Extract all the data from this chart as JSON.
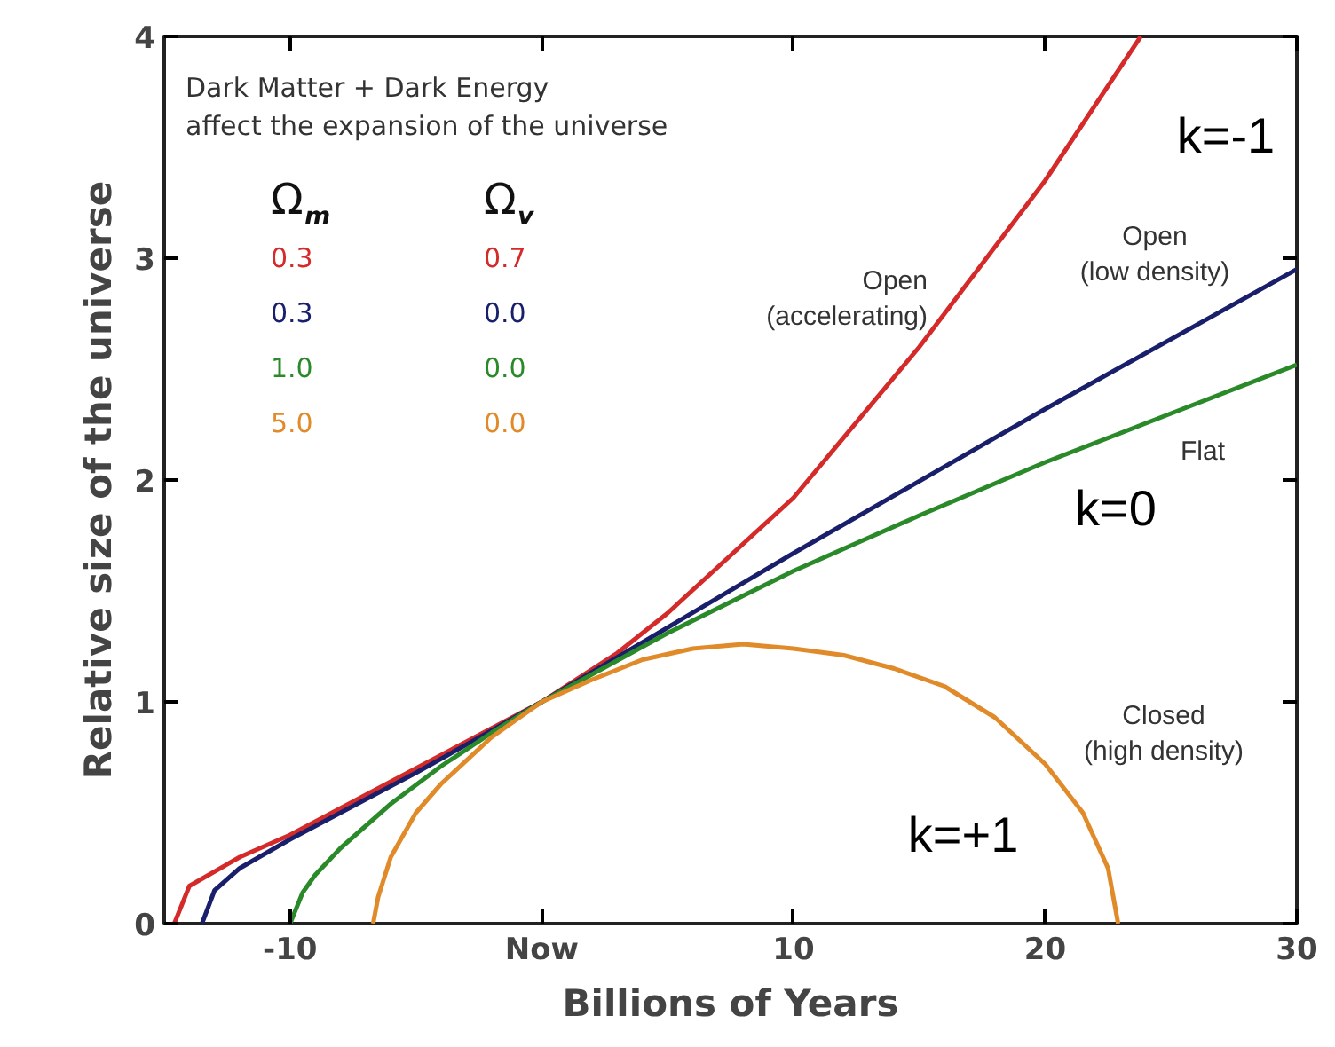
{
  "chart_data": {
    "type": "line",
    "xlabel": "Billions of Years",
    "ylabel": "Relative size of the universe",
    "xlim": [
      -15,
      30
    ],
    "ylim": [
      0,
      4
    ],
    "xticks": [
      -10,
      {
        "value": 0,
        "label": "Now"
      },
      10,
      20,
      30
    ],
    "yticks": [
      0,
      1,
      2,
      3,
      4
    ],
    "grid": false,
    "line_style": "solid",
    "marker": "none",
    "legend_title": "Ω$_{m}$ Ω$_{v}$",
    "series": [
      {
        "name": "0.3 0.7",
        "color": "#d42a2a",
        "x": [
          -14.6,
          -14,
          -12,
          -10,
          -8,
          -5,
          -2,
          0,
          3,
          5,
          10,
          15,
          20,
          23.8
        ],
        "values": [
          0,
          0.17,
          0.3,
          0.4,
          0.52,
          0.7,
          0.88,
          1,
          1.22,
          1.4,
          1.92,
          2.6,
          3.35,
          4
        ]
      },
      {
        "name": "0.3 0.0",
        "color": "#1a1f6b",
        "x": [
          -13.5,
          -13,
          -12,
          -10,
          -8,
          -5,
          -2,
          0,
          10,
          20,
          30
        ],
        "values": [
          0,
          0.15,
          0.25,
          0.38,
          0.5,
          0.68,
          0.87,
          1,
          1.67,
          2.32,
          2.95
        ]
      },
      {
        "name": "1.0 0.0",
        "color": "#2a8a2a",
        "x": [
          -10,
          -9.5,
          -9,
          -8,
          -6,
          -4,
          -2,
          0,
          5,
          10,
          15,
          20,
          25,
          30
        ],
        "values": [
          0,
          0.14,
          0.22,
          0.34,
          0.54,
          0.71,
          0.86,
          1,
          1.31,
          1.59,
          1.84,
          2.08,
          2.3,
          2.52
        ]
      },
      {
        "name": "5.0 0.0",
        "color": "#e08a2a",
        "x": [
          -6.7,
          -6.5,
          -6,
          -5,
          -4,
          -2,
          0,
          2,
          4,
          6,
          8,
          10,
          12,
          14,
          16,
          18,
          20,
          21.5,
          22.5,
          22.9
        ],
        "values": [
          0,
          0.12,
          0.3,
          0.5,
          0.63,
          0.84,
          1,
          1.1,
          1.19,
          1.24,
          1.26,
          1.24,
          1.21,
          1.15,
          1.07,
          0.93,
          0.72,
          0.5,
          0.25,
          0
        ]
      }
    ],
    "annotations": [
      "Dark Matter + Dark Energy\naffect the expansion of the universe",
      "Open\n(accelerating)",
      "Open\n(low density)",
      "Flat",
      "Closed\n(high density)",
      "k=-1",
      "k=0",
      "k=+1"
    ]
  }
}
